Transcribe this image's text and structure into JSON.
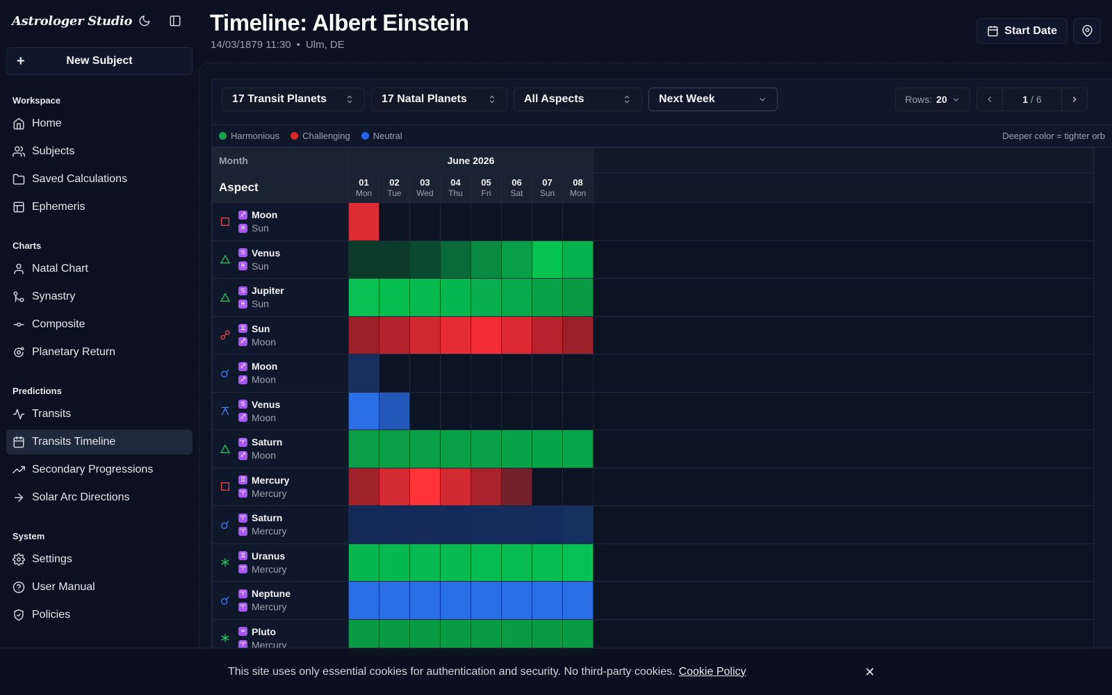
{
  "brand": "Astrologer Studio",
  "new_subject_label": "New Subject",
  "sidebar": {
    "sections": [
      {
        "title": "Workspace",
        "items": [
          {
            "label": "Home",
            "icon": "home-icon"
          },
          {
            "label": "Subjects",
            "icon": "users-icon"
          },
          {
            "label": "Saved Calculations",
            "icon": "folder-icon"
          },
          {
            "label": "Ephemeris",
            "icon": "table-icon"
          }
        ]
      },
      {
        "title": "Charts",
        "items": [
          {
            "label": "Natal Chart",
            "icon": "user-icon"
          },
          {
            "label": "Synastry",
            "icon": "git-merge-icon"
          },
          {
            "label": "Composite",
            "icon": "commit-icon"
          },
          {
            "label": "Planetary Return",
            "icon": "orbit-icon"
          }
        ]
      },
      {
        "title": "Predictions",
        "items": [
          {
            "label": "Transits",
            "icon": "activity-icon"
          },
          {
            "label": "Transits Timeline",
            "icon": "calendar-icon",
            "active": true
          },
          {
            "label": "Secondary Progressions",
            "icon": "trending-up-icon"
          },
          {
            "label": "Solar Arc Directions",
            "icon": "arrow-right-icon"
          }
        ]
      },
      {
        "title": "System",
        "items": [
          {
            "label": "Settings",
            "icon": "gear-icon"
          },
          {
            "label": "User Manual",
            "icon": "help-circle-icon"
          },
          {
            "label": "Policies",
            "icon": "shield-icon"
          }
        ]
      }
    ]
  },
  "header": {
    "title": "Timeline: Albert Einstein",
    "datetime": "14/03/1879 11:30",
    "separator": "•",
    "location": "Ulm, DE",
    "start_date_label": "Start Date"
  },
  "toolbar": {
    "transit_planets": "17 Transit Planets",
    "natal_planets": "17 Natal Planets",
    "aspects": "All Aspects",
    "range": "Next Week",
    "rows_label": "Rows:",
    "rows_value": "20",
    "page_current": "1",
    "page_sep": "/",
    "page_total": "6"
  },
  "legend": {
    "harmonious": "Harmonious",
    "challenging": "Challenging",
    "neutral": "Neutral",
    "hint": "Deeper color = tighter orb",
    "colors": {
      "harmonious": "#16a34a",
      "challenging": "#dc2626",
      "neutral": "#2563eb"
    }
  },
  "grid": {
    "month_header": "Month",
    "aspect_header": "Aspect",
    "month_name": "June 2026",
    "days": [
      {
        "n": "01",
        "w": "Mon"
      },
      {
        "n": "02",
        "w": "Tue"
      },
      {
        "n": "03",
        "w": "Wed"
      },
      {
        "n": "04",
        "w": "Thu"
      },
      {
        "n": "05",
        "w": "Fri"
      },
      {
        "n": "06",
        "w": "Sat"
      },
      {
        "n": "07",
        "w": "Sun"
      },
      {
        "n": "08",
        "w": "Mon"
      }
    ],
    "rows": [
      {
        "aspect": "square",
        "transit": "Moon",
        "tglyph": "♐",
        "natal": "Sun",
        "nglyph": "♓",
        "cells": [
          "#dc2d35",
          null,
          null,
          null,
          null,
          null,
          null,
          null
        ]
      },
      {
        "aspect": "trine",
        "transit": "Venus",
        "tglyph": "♋",
        "natal": "Sun",
        "nglyph": "♓",
        "cells": [
          "#0b3a2a",
          "#0b3a2a",
          "#0a4a30",
          "#0a6a3a",
          "#088a40",
          "#07a048",
          "#05c352",
          "#06b24d"
        ]
      },
      {
        "aspect": "trine",
        "transit": "Jupiter",
        "tglyph": "♋",
        "natal": "Sun",
        "nglyph": "♓",
        "cells": [
          "#07c152",
          "#06bd50",
          "#06ba4f",
          "#06b64e",
          "#07b04c",
          "#07aa4a",
          "#08a247",
          "#099a45"
        ]
      },
      {
        "aspect": "opposition",
        "transit": "Sun",
        "tglyph": "♊",
        "natal": "Moon",
        "nglyph": "♐",
        "cells": [
          "#9b2029",
          "#b3232d",
          "#cf2831",
          "#e52b34",
          "#f22d36",
          "#db2a33",
          "#b8242e",
          "#9a2029"
        ]
      },
      {
        "aspect": "conjunction",
        "transit": "Moon",
        "tglyph": "♐",
        "natal": "Moon",
        "nglyph": "♐",
        "cells": [
          "#17305f",
          null,
          null,
          null,
          null,
          null,
          null,
          null
        ]
      },
      {
        "aspect": "quincunx",
        "transit": "Venus",
        "tglyph": "♋",
        "natal": "Moon",
        "nglyph": "♐",
        "cells": [
          "#2b6ee6",
          "#2358b8",
          null,
          null,
          null,
          null,
          null,
          null
        ]
      },
      {
        "aspect": "trine",
        "transit": "Saturn",
        "tglyph": "♈",
        "natal": "Moon",
        "nglyph": "♐",
        "cells": [
          "#089f47",
          "#089f47",
          "#089f47",
          "#08a047",
          "#08a147",
          "#08a247",
          "#07a348",
          "#07a549"
        ]
      },
      {
        "aspect": "square",
        "transit": "Mercury",
        "tglyph": "♊",
        "natal": "Mercury",
        "nglyph": "♈",
        "cells": [
          "#a0222b",
          "#d32a33",
          "#ff3338",
          "#d22a33",
          "#a8232c",
          "#72202a",
          null,
          null
        ]
      },
      {
        "aspect": "conjunction",
        "transit": "Saturn",
        "tglyph": "♈",
        "natal": "Mercury",
        "nglyph": "♈",
        "cells": [
          "#132a57",
          "#132a58",
          "#142b59",
          "#142b5a",
          "#142c5b",
          "#152c5c",
          "#152d5e",
          "#16305f"
        ]
      },
      {
        "aspect": "sextile",
        "transit": "Uranus",
        "tglyph": "♊",
        "natal": "Mercury",
        "nglyph": "♈",
        "cells": [
          "#06b74f",
          "#06b850",
          "#06b950",
          "#06ba50",
          "#06bb51",
          "#06bc51",
          "#05be52",
          "#05c052"
        ]
      },
      {
        "aspect": "conjunction",
        "transit": "Neptune",
        "tglyph": "♈",
        "natal": "Mercury",
        "nglyph": "♈",
        "cells": [
          "#2a6ee6",
          "#2a6ee6",
          "#2a6ee6",
          "#2a6ee6",
          "#2a6ee6",
          "#2a6ee6",
          "#2a6ee6",
          "#2a6ee6"
        ]
      },
      {
        "aspect": "sextile",
        "transit": "Pluto",
        "tglyph": "♒",
        "natal": "Mercury",
        "nglyph": "♈",
        "cells": [
          "#099a45",
          "#099a45",
          "#099a45",
          "#099a45",
          "#099a45",
          "#099a45",
          "#099a45",
          "#099a45"
        ]
      }
    ]
  },
  "cookie": {
    "text": "This site uses only essential cookies for authentication and security. No third-party cookies.",
    "link": "Cookie Policy"
  }
}
